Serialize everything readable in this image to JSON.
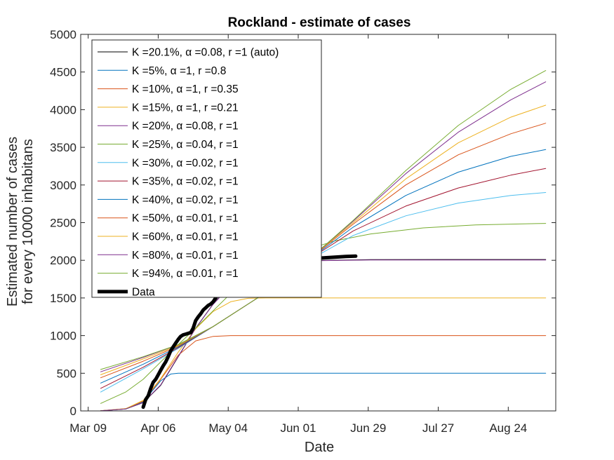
{
  "chart_data": {
    "type": "line",
    "title": "Rockland - estimate of cases",
    "xlabel": "Date",
    "ylabel": [
      "Estimated number of cases",
      "for every 10000 inhabitans"
    ],
    "x_unit": "date",
    "xlim": [
      "2020-03-06",
      "2020-09-12"
    ],
    "ylim": [
      0,
      5000
    ],
    "x_ticks": [
      {
        "date": "2020-03-09",
        "label": "Mar 09"
      },
      {
        "date": "2020-04-06",
        "label": "Apr 06"
      },
      {
        "date": "2020-05-04",
        "label": "May 04"
      },
      {
        "date": "2020-06-01",
        "label": "Jun 01"
      },
      {
        "date": "2020-06-29",
        "label": "Jun 29"
      },
      {
        "date": "2020-07-27",
        "label": "Jul 27"
      },
      {
        "date": "2020-08-24",
        "label": "Aug 24"
      }
    ],
    "y_ticks": [
      0,
      500,
      1000,
      1500,
      2000,
      2500,
      3000,
      3500,
      4000,
      4500,
      5000
    ],
    "grid": false,
    "legend_position": "top-left",
    "series": [
      {
        "name": "K =20.1%, α =0.08, r =1 (auto)",
        "color": "#000000",
        "width": 1,
        "points": [
          [
            "2020-03-14",
            2
          ],
          [
            "2020-03-24",
            25
          ],
          [
            "2020-03-31",
            110
          ],
          [
            "2020-04-07",
            340
          ],
          [
            "2020-04-14",
            720
          ],
          [
            "2020-04-21",
            1100
          ],
          [
            "2020-04-28",
            1420
          ],
          [
            "2020-05-05",
            1670
          ],
          [
            "2020-05-12",
            1830
          ],
          [
            "2020-05-19",
            1920
          ],
          [
            "2020-05-26",
            1965
          ],
          [
            "2020-06-09",
            1997
          ],
          [
            "2020-06-30",
            2008
          ],
          [
            "2020-07-31",
            2010
          ],
          [
            "2020-09-08",
            2010
          ]
        ]
      },
      {
        "name": "K =5%, α =1, r =0.8",
        "color": "#0072BD",
        "width": 1,
        "points": [
          [
            "2020-03-14",
            3
          ],
          [
            "2020-03-24",
            25
          ],
          [
            "2020-03-31",
            120
          ],
          [
            "2020-04-07",
            400
          ],
          [
            "2020-04-11",
            490
          ],
          [
            "2020-04-14",
            500
          ],
          [
            "2020-05-04",
            500
          ],
          [
            "2020-09-08",
            500
          ]
        ]
      },
      {
        "name": "K =10%, α =1, r =0.35",
        "color": "#D95319",
        "width": 1,
        "points": [
          [
            "2020-03-14",
            3
          ],
          [
            "2020-03-24",
            30
          ],
          [
            "2020-03-31",
            130
          ],
          [
            "2020-04-07",
            420
          ],
          [
            "2020-04-14",
            740
          ],
          [
            "2020-04-21",
            930
          ],
          [
            "2020-04-28",
            990
          ],
          [
            "2020-05-05",
            1000
          ],
          [
            "2020-09-08",
            1000
          ]
        ]
      },
      {
        "name": "K =15%, α =1, r =0.21",
        "color": "#EDB120",
        "width": 1,
        "points": [
          [
            "2020-03-14",
            3
          ],
          [
            "2020-03-24",
            30
          ],
          [
            "2020-03-31",
            140
          ],
          [
            "2020-04-07",
            430
          ],
          [
            "2020-04-14",
            780
          ],
          [
            "2020-04-21",
            1090
          ],
          [
            "2020-04-28",
            1320
          ],
          [
            "2020-05-05",
            1450
          ],
          [
            "2020-05-12",
            1495
          ],
          [
            "2020-05-19",
            1500
          ],
          [
            "2020-09-08",
            1500
          ]
        ]
      },
      {
        "name": "K =20%, α =0.08, r =1",
        "color": "#7E2F8E",
        "width": 1,
        "points": [
          [
            "2020-03-14",
            2
          ],
          [
            "2020-03-24",
            26
          ],
          [
            "2020-03-31",
            112
          ],
          [
            "2020-04-07",
            345
          ],
          [
            "2020-04-14",
            725
          ],
          [
            "2020-04-21",
            1100
          ],
          [
            "2020-04-28",
            1415
          ],
          [
            "2020-05-05",
            1665
          ],
          [
            "2020-05-12",
            1825
          ],
          [
            "2020-05-19",
            1915
          ],
          [
            "2020-05-26",
            1960
          ],
          [
            "2020-06-09",
            1995
          ],
          [
            "2020-06-30",
            2005
          ],
          [
            "2020-09-08",
            2005
          ]
        ]
      },
      {
        "name": "K =25%, α =0.04, r =1",
        "color": "#77AC30",
        "width": 1,
        "points": [
          [
            "2020-03-14",
            100
          ],
          [
            "2020-03-24",
            250
          ],
          [
            "2020-03-31",
            420
          ],
          [
            "2020-04-07",
            650
          ],
          [
            "2020-04-14",
            880
          ],
          [
            "2020-04-21",
            1100
          ],
          [
            "2020-04-28",
            1330
          ],
          [
            "2020-05-05",
            1560
          ],
          [
            "2020-05-19",
            1900
          ],
          [
            "2020-06-02",
            2120
          ],
          [
            "2020-06-16",
            2260
          ],
          [
            "2020-06-30",
            2350
          ],
          [
            "2020-07-21",
            2430
          ],
          [
            "2020-08-11",
            2470
          ],
          [
            "2020-09-08",
            2490
          ]
        ]
      },
      {
        "name": "K =30%, α =0.02, r =1",
        "color": "#4DBEEE",
        "width": 1,
        "points": [
          [
            "2020-03-14",
            250
          ],
          [
            "2020-03-31",
            560
          ],
          [
            "2020-04-14",
            830
          ],
          [
            "2020-04-28",
            1120
          ],
          [
            "2020-05-12",
            1420
          ],
          [
            "2020-05-26",
            1720
          ],
          [
            "2020-06-09",
            2070
          ],
          [
            "2020-06-23",
            2330
          ],
          [
            "2020-07-14",
            2590
          ],
          [
            "2020-08-04",
            2760
          ],
          [
            "2020-08-25",
            2860
          ],
          [
            "2020-09-08",
            2900
          ]
        ]
      },
      {
        "name": "K =35%, α =0.02, r =1",
        "color": "#A2142F",
        "width": 1,
        "points": [
          [
            "2020-03-14",
            300
          ],
          [
            "2020-03-31",
            580
          ],
          [
            "2020-04-14",
            840
          ],
          [
            "2020-04-28",
            1120
          ],
          [
            "2020-05-12",
            1420
          ],
          [
            "2020-05-26",
            1720
          ],
          [
            "2020-06-09",
            2090
          ],
          [
            "2020-06-23",
            2390
          ],
          [
            "2020-07-14",
            2720
          ],
          [
            "2020-08-04",
            2960
          ],
          [
            "2020-08-25",
            3130
          ],
          [
            "2020-09-08",
            3220
          ]
        ]
      },
      {
        "name": "K =40%, α =0.02, r =1",
        "color": "#0072BD",
        "width": 1,
        "points": [
          [
            "2020-03-14",
            370
          ],
          [
            "2020-03-31",
            620
          ],
          [
            "2020-04-14",
            850
          ],
          [
            "2020-04-28",
            1120
          ],
          [
            "2020-05-12",
            1420
          ],
          [
            "2020-05-26",
            1720
          ],
          [
            "2020-06-09",
            2100
          ],
          [
            "2020-06-23",
            2440
          ],
          [
            "2020-07-14",
            2860
          ],
          [
            "2020-08-04",
            3170
          ],
          [
            "2020-08-25",
            3380
          ],
          [
            "2020-09-08",
            3470
          ]
        ]
      },
      {
        "name": "K =50%, α =0.01, r =1",
        "color": "#D95319",
        "width": 1,
        "points": [
          [
            "2020-03-14",
            440
          ],
          [
            "2020-03-31",
            660
          ],
          [
            "2020-04-14",
            860
          ],
          [
            "2020-04-28",
            1120
          ],
          [
            "2020-05-12",
            1420
          ],
          [
            "2020-05-26",
            1720
          ],
          [
            "2020-06-09",
            2110
          ],
          [
            "2020-06-23",
            2480
          ],
          [
            "2020-07-14",
            3000
          ],
          [
            "2020-08-04",
            3400
          ],
          [
            "2020-08-25",
            3680
          ],
          [
            "2020-09-08",
            3820
          ]
        ]
      },
      {
        "name": "K =60%, α =0.01, r =1",
        "color": "#EDB120",
        "width": 1,
        "points": [
          [
            "2020-03-14",
            480
          ],
          [
            "2020-03-31",
            690
          ],
          [
            "2020-04-14",
            870
          ],
          [
            "2020-04-28",
            1120
          ],
          [
            "2020-05-12",
            1420
          ],
          [
            "2020-05-26",
            1720
          ],
          [
            "2020-06-09",
            2120
          ],
          [
            "2020-06-23",
            2500
          ],
          [
            "2020-07-14",
            3080
          ],
          [
            "2020-08-04",
            3560
          ],
          [
            "2020-08-25",
            3900
          ],
          [
            "2020-09-08",
            4060
          ]
        ]
      },
      {
        "name": "K =80%, α =0.01, r =1",
        "color": "#7E2F8E",
        "width": 1,
        "points": [
          [
            "2020-03-14",
            520
          ],
          [
            "2020-03-31",
            710
          ],
          [
            "2020-04-14",
            880
          ],
          [
            "2020-04-28",
            1120
          ],
          [
            "2020-05-12",
            1420
          ],
          [
            "2020-05-26",
            1720
          ],
          [
            "2020-06-09",
            2120
          ],
          [
            "2020-06-23",
            2520
          ],
          [
            "2020-07-14",
            3150
          ],
          [
            "2020-08-04",
            3700
          ],
          [
            "2020-08-25",
            4130
          ],
          [
            "2020-09-08",
            4370
          ]
        ]
      },
      {
        "name": "K =94%, α =0.01, r =1",
        "color": "#77AC30",
        "width": 1,
        "points": [
          [
            "2020-03-14",
            550
          ],
          [
            "2020-03-31",
            720
          ],
          [
            "2020-04-14",
            880
          ],
          [
            "2020-04-28",
            1120
          ],
          [
            "2020-05-12",
            1420
          ],
          [
            "2020-05-26",
            1720
          ],
          [
            "2020-06-09",
            2120
          ],
          [
            "2020-06-23",
            2530
          ],
          [
            "2020-07-14",
            3190
          ],
          [
            "2020-08-04",
            3790
          ],
          [
            "2020-08-25",
            4270
          ],
          [
            "2020-09-08",
            4520
          ]
        ]
      },
      {
        "name": "Data",
        "color": "#000000",
        "width": 5,
        "points": [
          [
            "2020-03-31",
            50
          ],
          [
            "2020-04-01",
            150
          ],
          [
            "2020-04-02",
            200
          ],
          [
            "2020-04-03",
            300
          ],
          [
            "2020-04-04",
            380
          ],
          [
            "2020-04-05",
            420
          ],
          [
            "2020-04-06",
            480
          ],
          [
            "2020-04-07",
            540
          ],
          [
            "2020-04-08",
            600
          ],
          [
            "2020-04-09",
            650
          ],
          [
            "2020-04-10",
            720
          ],
          [
            "2020-04-11",
            800
          ],
          [
            "2020-04-12",
            850
          ],
          [
            "2020-04-13",
            900
          ],
          [
            "2020-04-14",
            950
          ],
          [
            "2020-04-15",
            990
          ],
          [
            "2020-04-16",
            1010
          ],
          [
            "2020-04-17",
            1020
          ],
          [
            "2020-04-18",
            1030
          ],
          [
            "2020-04-19",
            1040
          ],
          [
            "2020-04-20",
            1100
          ],
          [
            "2020-04-21",
            1200
          ],
          [
            "2020-04-22",
            1250
          ],
          [
            "2020-04-23",
            1290
          ],
          [
            "2020-04-24",
            1340
          ],
          [
            "2020-04-25",
            1370
          ],
          [
            "2020-04-26",
            1400
          ],
          [
            "2020-04-27",
            1420
          ],
          [
            "2020-04-28",
            1450
          ],
          [
            "2020-04-29",
            1500
          ],
          [
            "2020-04-30",
            1550
          ],
          [
            "2020-05-02",
            1620
          ],
          [
            "2020-05-04",
            1680
          ],
          [
            "2020-05-06",
            1730
          ],
          [
            "2020-05-08",
            1780
          ],
          [
            "2020-05-10",
            1820
          ],
          [
            "2020-05-13",
            1880
          ],
          [
            "2020-05-16",
            1920
          ],
          [
            "2020-05-19",
            1950
          ],
          [
            "2020-05-22",
            1980
          ],
          [
            "2020-05-25",
            2000
          ],
          [
            "2020-05-28",
            2010
          ],
          [
            "2020-06-01",
            2020
          ],
          [
            "2020-06-05",
            2030
          ],
          [
            "2020-06-10",
            2030
          ],
          [
            "2020-06-15",
            2040
          ],
          [
            "2020-06-20",
            2050
          ],
          [
            "2020-06-24",
            2055
          ]
        ]
      }
    ]
  }
}
